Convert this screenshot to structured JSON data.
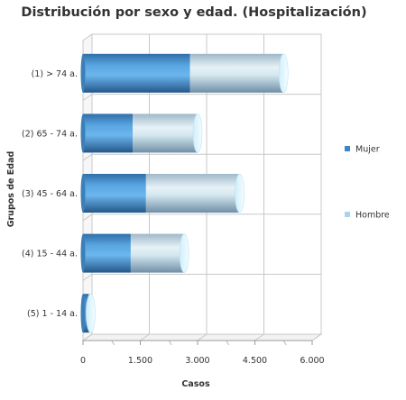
{
  "chart_data": {
    "type": "bar",
    "orientation": "horizontal",
    "stacked": true,
    "title": "Distribución por sexo y edad. (Hospitalización)",
    "xlabel": "Casos",
    "ylabel": "Grupos de Edad",
    "categories": [
      "(1) > 74 a.",
      "(2) 65 - 74 a.",
      "(3) 45 - 64 a.",
      "(4) 15 - 44 a.",
      "(5) 1 - 14 a."
    ],
    "series": [
      {
        "name": "Mujer",
        "values": [
          2800,
          1300,
          1650,
          1250,
          150
        ],
        "color": "#3d86c6"
      },
      {
        "name": "Hombre",
        "values": [
          2450,
          1700,
          2450,
          1400,
          50
        ],
        "color": "#a9d3ef"
      }
    ],
    "xlim": [
      0,
      6000
    ],
    "xticks": [
      0,
      1500,
      3000,
      4500,
      6000
    ],
    "xtick_labels": [
      "0",
      "1.500",
      "3.000",
      "4.500",
      "6.000"
    ],
    "grid": true,
    "legend_position": "right"
  }
}
